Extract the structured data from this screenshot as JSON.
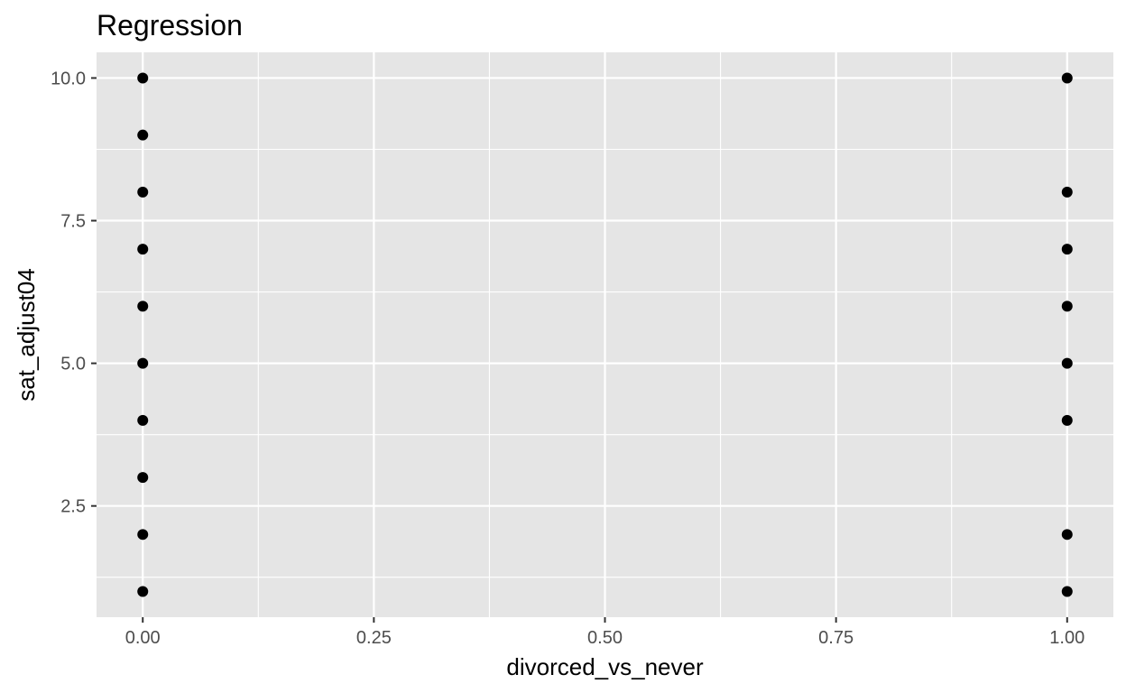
{
  "chart_data": {
    "type": "scatter",
    "title": "Regression",
    "xlabel": "divorced_vs_never",
    "ylabel": "sat_adjust04",
    "xlim": [
      -0.05,
      1.05
    ],
    "ylim": [
      0.55,
      10.45
    ],
    "x_ticks": [
      0.0,
      0.25,
      0.5,
      0.75,
      1.0
    ],
    "x_tick_labels": [
      "0.00",
      "0.25",
      "0.50",
      "0.75",
      "1.00"
    ],
    "y_ticks": [
      2.5,
      5.0,
      7.5,
      10.0
    ],
    "y_tick_labels": [
      "2.5",
      "5.0",
      "7.5",
      "10.0"
    ],
    "grid": true,
    "legend": "none",
    "colors": {
      "panel_background": "#e5e5e5",
      "grid_line": "#ffffff",
      "point": "#000000",
      "tick_mark": "#333333"
    },
    "points": [
      {
        "x": 0,
        "y": 10
      },
      {
        "x": 0,
        "y": 9
      },
      {
        "x": 0,
        "y": 8
      },
      {
        "x": 0,
        "y": 7
      },
      {
        "x": 0,
        "y": 6
      },
      {
        "x": 0,
        "y": 5
      },
      {
        "x": 0,
        "y": 4
      },
      {
        "x": 0,
        "y": 3
      },
      {
        "x": 0,
        "y": 2
      },
      {
        "x": 0,
        "y": 1
      },
      {
        "x": 1,
        "y": 10
      },
      {
        "x": 1,
        "y": 8
      },
      {
        "x": 1,
        "y": 7
      },
      {
        "x": 1,
        "y": 6
      },
      {
        "x": 1,
        "y": 5
      },
      {
        "x": 1,
        "y": 4
      },
      {
        "x": 1,
        "y": 2
      },
      {
        "x": 1,
        "y": 1
      }
    ]
  }
}
